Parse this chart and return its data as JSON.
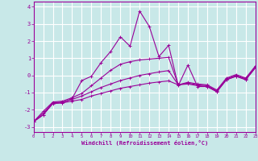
{
  "xlabel": "Windchill (Refroidissement éolien,°C)",
  "background_color": "#c8e8e8",
  "grid_color": "#b0d8d8",
  "line_color": "#990099",
  "x_values": [
    0,
    1,
    2,
    3,
    4,
    5,
    6,
    7,
    8,
    9,
    10,
    11,
    12,
    13,
    14,
    15,
    16,
    17,
    18,
    19,
    20,
    21,
    22,
    23
  ],
  "series_zigzag": [
    -2.7,
    -2.3,
    -1.6,
    -1.6,
    -1.35,
    -0.3,
    -0.05,
    0.75,
    1.4,
    2.25,
    1.7,
    3.75,
    2.85,
    1.1,
    1.75,
    -0.6,
    0.6,
    -0.65,
    -0.65,
    -0.95,
    -0.25,
    -0.05,
    -0.25,
    0.45
  ],
  "series_line1": [
    -2.7,
    -2.3,
    -1.65,
    -1.6,
    -1.5,
    -1.4,
    -1.2,
    -1.05,
    -0.9,
    -0.75,
    -0.65,
    -0.55,
    -0.45,
    -0.38,
    -0.32,
    -0.55,
    -0.5,
    -0.6,
    -0.65,
    -0.95,
    -0.25,
    -0.05,
    -0.25,
    0.45
  ],
  "series_line2": [
    -2.7,
    -2.2,
    -1.6,
    -1.55,
    -1.4,
    -1.2,
    -0.95,
    -0.7,
    -0.5,
    -0.3,
    -0.15,
    -0.0,
    0.1,
    0.2,
    0.28,
    -0.55,
    -0.45,
    -0.55,
    -0.6,
    -0.9,
    -0.2,
    0.0,
    -0.2,
    0.5
  ],
  "series_line3": [
    -2.7,
    -2.1,
    -1.55,
    -1.5,
    -1.3,
    -1.05,
    -0.6,
    -0.15,
    0.3,
    0.65,
    0.8,
    0.9,
    0.95,
    1.0,
    1.05,
    -0.55,
    -0.4,
    -0.5,
    -0.55,
    -0.85,
    -0.15,
    0.05,
    -0.15,
    0.55
  ],
  "ylim": [
    -3.3,
    4.3
  ],
  "xlim": [
    0,
    23
  ],
  "yticks": [
    -3,
    -2,
    -1,
    0,
    1,
    2,
    3,
    4
  ],
  "xticks": [
    0,
    1,
    2,
    3,
    4,
    5,
    6,
    7,
    8,
    9,
    10,
    11,
    12,
    13,
    14,
    15,
    16,
    17,
    18,
    19,
    20,
    21,
    22,
    23
  ]
}
